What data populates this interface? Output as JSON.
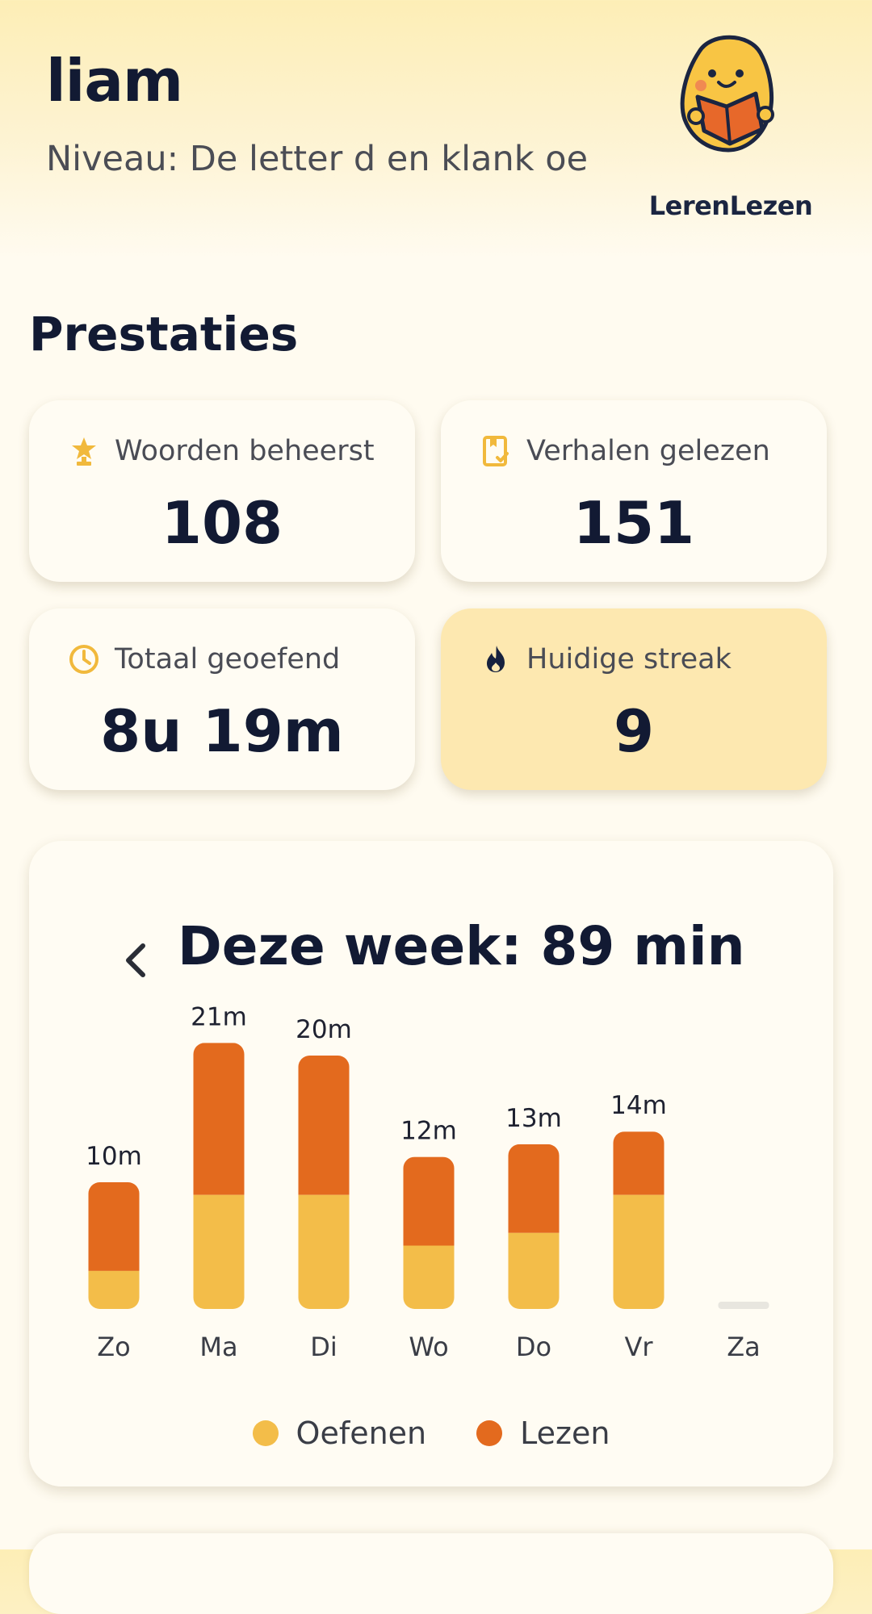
{
  "header": {
    "user_name": "liam",
    "level": "Niveau: De letter d en klank oe",
    "logo_text": "LerenLezen"
  },
  "section_title": "Prestaties",
  "stats": [
    {
      "icon": "trophy-icon",
      "label": "Woorden beheerst",
      "value": "108"
    },
    {
      "icon": "book-check-icon",
      "label": "Verhalen gelezen",
      "value": "151"
    },
    {
      "icon": "clock-icon",
      "label": "Totaal geoefend",
      "value": "8u 19m"
    },
    {
      "icon": "flame-icon",
      "label": "Huidige streak",
      "value": "9"
    }
  ],
  "week": {
    "title": "Deze week: 89 min"
  },
  "colors": {
    "oefenen": "#f3bd49",
    "lezen": "#e36a1e",
    "empty": "#e8e6df",
    "accent": "#f1b93c"
  },
  "chart_data": {
    "type": "bar",
    "stacked": true,
    "categories": [
      "Zo",
      "Ma",
      "Di",
      "Wo",
      "Do",
      "Vr",
      "Za"
    ],
    "series": [
      {
        "name": "Oefenen",
        "values": [
          3,
          9,
          9,
          5,
          6,
          9,
          0
        ]
      },
      {
        "name": "Lezen",
        "values": [
          7,
          12,
          11,
          7,
          7,
          5,
          0
        ]
      }
    ],
    "totals": [
      10,
      21,
      20,
      12,
      13,
      14,
      0
    ],
    "data_labels": [
      "10m",
      "21m",
      "20m",
      "12m",
      "13m",
      "14m",
      ""
    ],
    "legend": "bottom-center"
  }
}
